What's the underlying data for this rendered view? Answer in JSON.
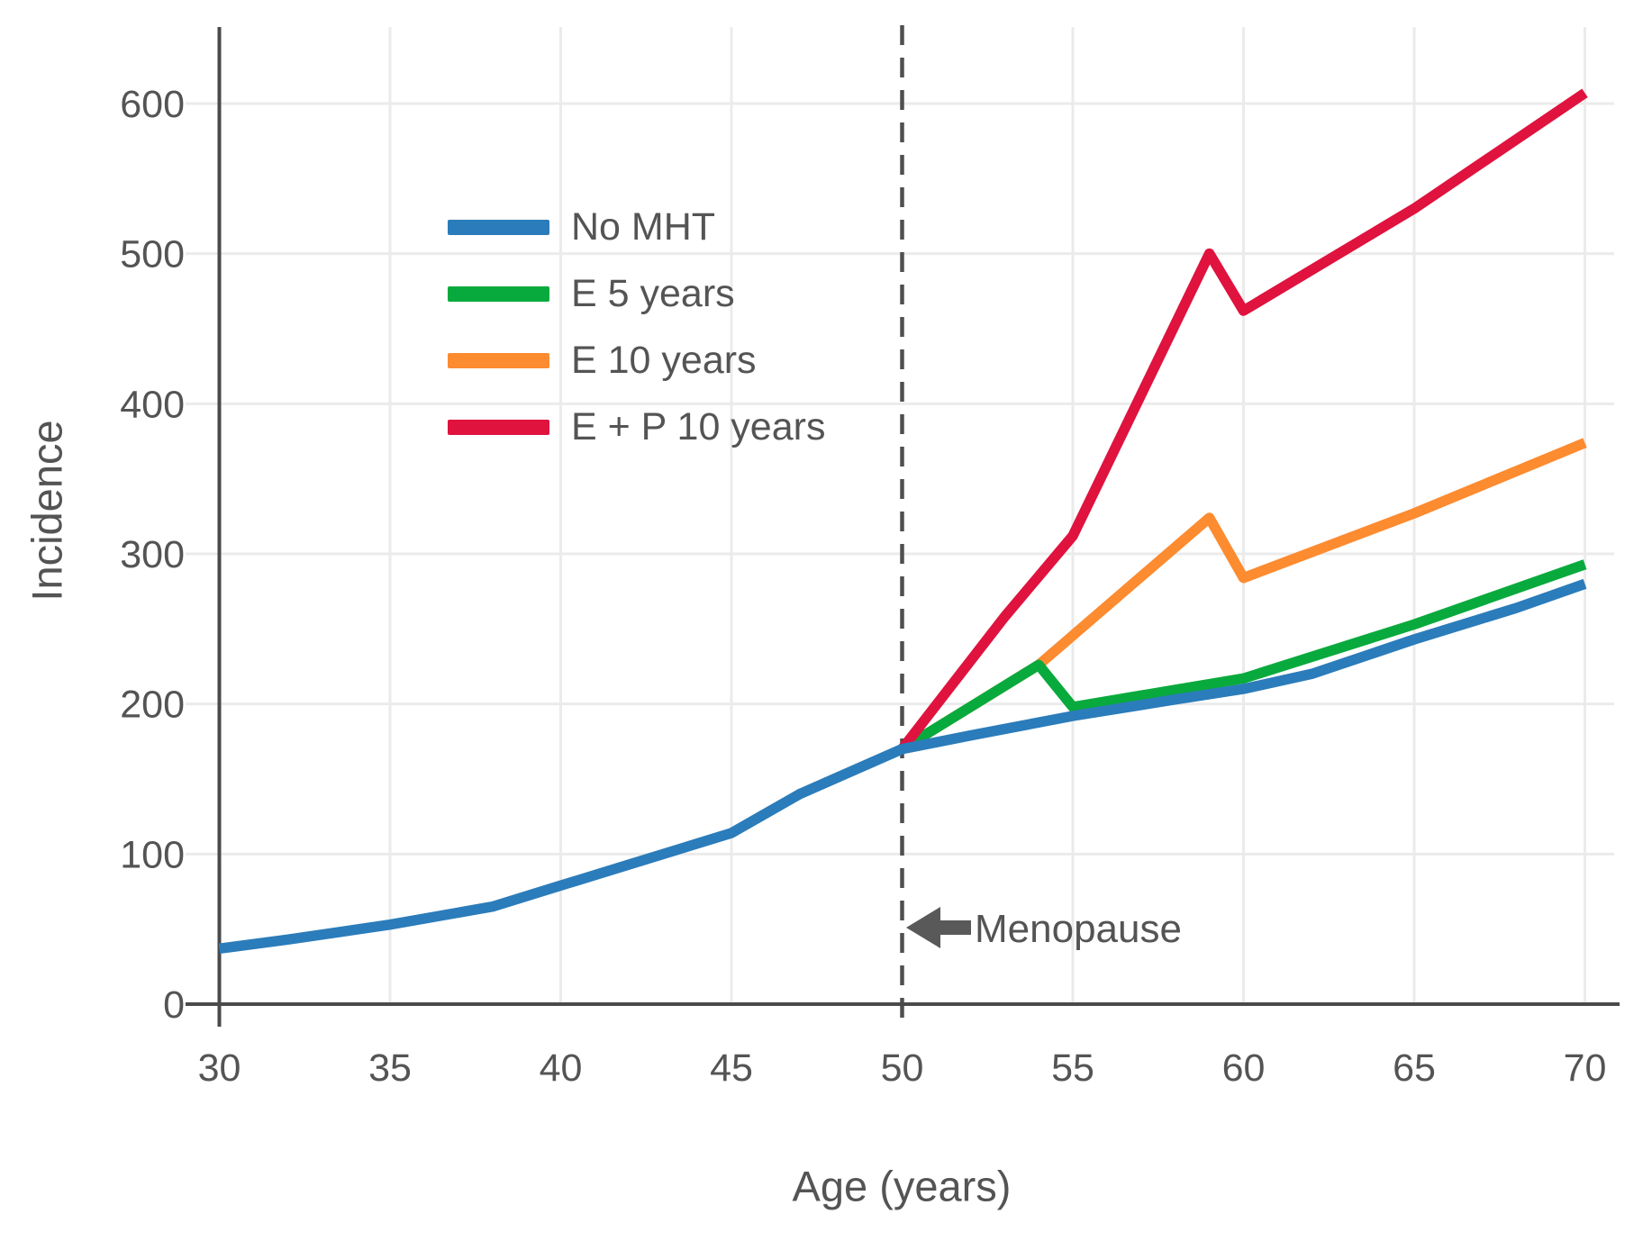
{
  "figure": {
    "background": "#ffffff",
    "text_color": "#545454",
    "axis_color": "#4a4a4a",
    "gridline_color": "#ebebeb",
    "dashed_line_color": "#4f4f4f"
  },
  "chart_data": {
    "type": "line",
    "title": "",
    "xlabel": "Age (years)",
    "ylabel": "Incidence",
    "x_ticks": [
      30,
      35,
      40,
      45,
      50,
      55,
      60,
      65,
      70
    ],
    "y_ticks": [
      0,
      100,
      200,
      300,
      400,
      500,
      600
    ],
    "xlim": [
      30,
      70
    ],
    "ylim": [
      0,
      650
    ],
    "grid": true,
    "legend_position": "upper-left-inside",
    "series": [
      {
        "name": "No MHT",
        "color": "#2b7cba",
        "points": [
          [
            30,
            37
          ],
          [
            32,
            43
          ],
          [
            35,
            53
          ],
          [
            38,
            65
          ],
          [
            40,
            79
          ],
          [
            42,
            93
          ],
          [
            45,
            114
          ],
          [
            47,
            140
          ],
          [
            50,
            170
          ],
          [
            52,
            179
          ],
          [
            55,
            192
          ],
          [
            58,
            203
          ],
          [
            60,
            210
          ],
          [
            62,
            220
          ],
          [
            65,
            243
          ],
          [
            68,
            264
          ],
          [
            70,
            280
          ]
        ]
      },
      {
        "name": "E 5 years",
        "color": "#09aa3d",
        "points": [
          [
            50,
            170
          ],
          [
            54,
            226
          ],
          [
            55,
            198
          ],
          [
            60,
            217
          ],
          [
            65,
            253
          ],
          [
            70,
            293
          ]
        ]
      },
      {
        "name": "E 10 years",
        "color": "#fd8b30",
        "points": [
          [
            50,
            170
          ],
          [
            54,
            226
          ],
          [
            59,
            324
          ],
          [
            60,
            284
          ],
          [
            65,
            327
          ],
          [
            70,
            374
          ]
        ]
      },
      {
        "name": "E + P 10 years",
        "color": "#e0123e",
        "points": [
          [
            50,
            170
          ],
          [
            53,
            258
          ],
          [
            55,
            312
          ],
          [
            59,
            500
          ],
          [
            60,
            462
          ],
          [
            65,
            530
          ],
          [
            70,
            607
          ]
        ]
      }
    ],
    "annotations": {
      "menopause": {
        "text": "Menopause",
        "line_x": 50,
        "line_style": "dashed",
        "arrow_direction": "left"
      }
    }
  }
}
